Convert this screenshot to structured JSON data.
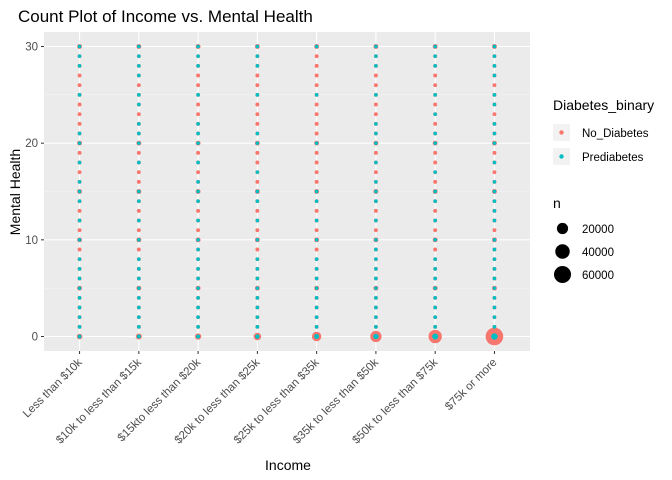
{
  "chart_data": {
    "type": "scatter",
    "title": "Count Plot of Income vs. Mental Health",
    "xlabel": "Income",
    "ylabel": "Mental Health",
    "categories": [
      "Less than $10k",
      "$10k to less than $15k",
      "$15kto less than $20k",
      "$20k to less than $25k",
      "$25k to less than $35k",
      "$35k to less than $50k",
      "$50k to less than $75k",
      "$75k or more"
    ],
    "y_ticks": [
      0,
      10,
      20,
      30
    ],
    "ylim": [
      -1.5,
      31.5
    ],
    "grid": true,
    "series": [
      {
        "name": "No_Diabetes",
        "color": "#F8766D"
      },
      {
        "name": "Prediabetes",
        "color": "#00BFC4"
      }
    ],
    "y_levels": [
      0,
      1,
      2,
      3,
      4,
      5,
      6,
      7,
      8,
      9,
      10,
      11,
      12,
      13,
      14,
      15,
      16,
      17,
      18,
      19,
      20,
      21,
      22,
      23,
      24,
      25,
      26,
      27,
      28,
      29,
      30
    ],
    "prediabetes_y_by_category": [
      [
        0,
        1,
        2,
        3,
        4,
        5,
        6,
        7,
        8,
        10,
        12,
        14,
        15,
        16,
        18,
        20,
        21,
        25,
        28,
        29,
        30
      ],
      [
        0,
        1,
        2,
        3,
        4,
        5,
        6,
        7,
        8,
        10,
        12,
        14,
        15,
        18,
        20,
        21,
        22,
        24,
        25,
        27,
        28,
        29,
        30
      ],
      [
        0,
        1,
        2,
        3,
        4,
        5,
        6,
        7,
        8,
        9,
        10,
        12,
        14,
        15,
        16,
        18,
        20,
        21,
        22,
        25,
        28,
        29,
        30
      ],
      [
        0,
        1,
        2,
        3,
        4,
        5,
        6,
        7,
        8,
        10,
        12,
        14,
        15,
        17,
        20,
        21,
        25,
        28,
        29,
        30
      ],
      [
        0,
        1,
        2,
        3,
        4,
        5,
        6,
        7,
        8,
        10,
        12,
        14,
        15,
        20,
        25,
        30
      ],
      [
        0,
        1,
        2,
        3,
        4,
        5,
        6,
        7,
        8,
        9,
        10,
        12,
        14,
        15,
        16,
        18,
        20,
        21,
        22,
        25,
        28,
        29,
        30
      ],
      [
        0,
        1,
        2,
        3,
        4,
        5,
        6,
        7,
        8,
        10,
        12,
        14,
        15,
        17,
        20,
        21,
        23,
        25,
        28,
        29,
        30
      ],
      [
        0,
        1,
        2,
        3,
        4,
        5,
        6,
        7,
        8,
        9,
        10,
        12,
        13,
        14,
        15,
        16,
        18,
        20,
        21,
        22,
        24,
        25,
        27,
        28,
        29,
        30
      ]
    ],
    "no_diabetes_zero_count": [
      1800,
      2500,
      3000,
      6000,
      12000,
      20000,
      32000,
      65000
    ],
    "legend": {
      "color_title": "Diabetes_binary",
      "size_title": "n",
      "size_entries": [
        {
          "label": "20000",
          "value": 20000
        },
        {
          "label": "40000",
          "value": 40000
        },
        {
          "label": "60000",
          "value": 60000
        }
      ],
      "placement": "right"
    }
  }
}
